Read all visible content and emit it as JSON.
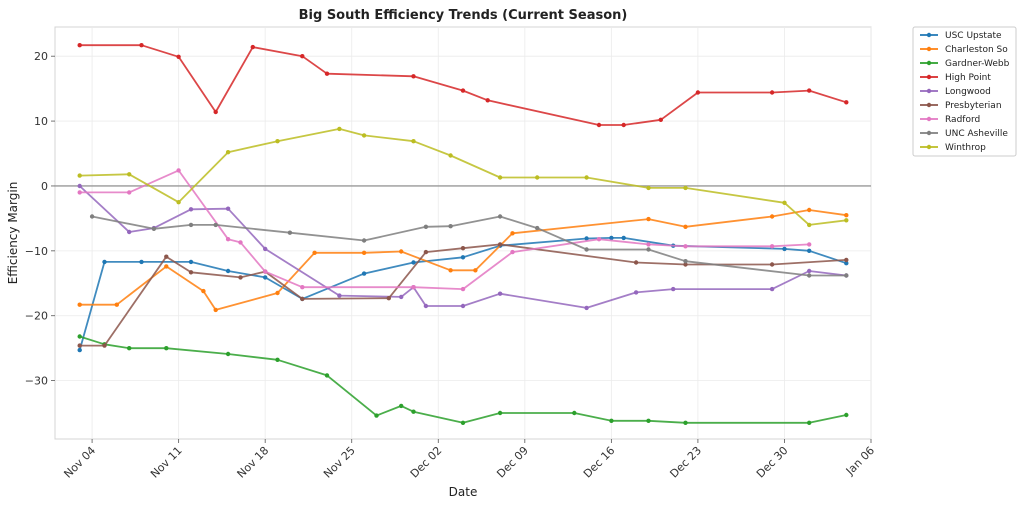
{
  "chart_data": {
    "type": "line",
    "title": "Big South Efficiency Trends (Current Season)",
    "xlabel": "Date",
    "ylabel": "Efficiency Margin",
    "x_ticks": [
      "Nov 04",
      "Nov 11",
      "Nov 18",
      "Nov 25",
      "Dec 02",
      "Dec 09",
      "Dec 16",
      "Dec 23",
      "Dec 30",
      "Jan 06"
    ],
    "y_ticks": [
      -30,
      -20,
      -10,
      0,
      10,
      20
    ],
    "ylim": [
      -39,
      24.5
    ],
    "xlim": [
      "2023-11-01",
      "2024-01-06"
    ],
    "reference_line": 0,
    "grid": true,
    "legend_position": "outside-top-right",
    "series": [
      {
        "name": "USC Upstate",
        "color": "#1f77b4",
        "points": [
          [
            "2023-11-03",
            -25.3
          ],
          [
            "2023-11-05",
            -11.7
          ],
          [
            "2023-11-08",
            -11.7
          ],
          [
            "2023-11-12",
            -11.7
          ],
          [
            "2023-11-15",
            -13.1
          ],
          [
            "2023-11-18",
            -14.1
          ],
          [
            "2023-11-21",
            -17.4
          ],
          [
            "2023-11-26",
            -13.5
          ],
          [
            "2023-11-30",
            -11.8
          ],
          [
            "2023-12-04",
            -11
          ],
          [
            "2023-12-07",
            -9.2
          ],
          [
            "2023-12-14",
            -8.1
          ],
          [
            "2023-12-16",
            -8
          ],
          [
            "2023-12-17",
            -8
          ],
          [
            "2023-12-21",
            -9.2
          ],
          [
            "2023-12-30",
            -9.7
          ],
          [
            "2024-01-01",
            -10
          ],
          [
            "2024-01-04",
            -11.9
          ]
        ]
      },
      {
        "name": "Charleston So",
        "color": "#ff7f0e",
        "points": [
          [
            "2023-11-03",
            -18.3
          ],
          [
            "2023-11-06",
            -18.3
          ],
          [
            "2023-11-10",
            -12.4
          ],
          [
            "2023-11-13",
            -16.2
          ],
          [
            "2023-11-14",
            -19.1
          ],
          [
            "2023-11-19",
            -16.5
          ],
          [
            "2023-11-22",
            -10.3
          ],
          [
            "2023-11-26",
            -10.3
          ],
          [
            "2023-11-29",
            -10.1
          ],
          [
            "2023-12-03",
            -13
          ],
          [
            "2023-12-05",
            -13
          ],
          [
            "2023-12-08",
            -7.3
          ],
          [
            "2023-12-19",
            -5.1
          ],
          [
            "2023-12-22",
            -6.3
          ],
          [
            "2023-12-29",
            -4.7
          ],
          [
            "2024-01-01",
            -3.7
          ],
          [
            "2024-01-04",
            -4.5
          ]
        ]
      },
      {
        "name": "Gardner-Webb",
        "color": "#2ca02c",
        "points": [
          [
            "2023-11-03",
            -23.2
          ],
          [
            "2023-11-05",
            -24.4
          ],
          [
            "2023-11-07",
            -25
          ],
          [
            "2023-11-10",
            -25
          ],
          [
            "2023-11-15",
            -25.9
          ],
          [
            "2023-11-19",
            -26.8
          ],
          [
            "2023-11-23",
            -29.2
          ],
          [
            "2023-11-27",
            -35.4
          ],
          [
            "2023-11-29",
            -33.9
          ],
          [
            "2023-11-30",
            -34.8
          ],
          [
            "2023-12-04",
            -36.5
          ],
          [
            "2023-12-07",
            -35
          ],
          [
            "2023-12-13",
            -35
          ],
          [
            "2023-12-16",
            -36.2
          ],
          [
            "2023-12-19",
            -36.2
          ],
          [
            "2023-12-22",
            -36.5
          ],
          [
            "2024-01-01",
            -36.5
          ],
          [
            "2024-01-04",
            -35.3
          ]
        ]
      },
      {
        "name": "High Point",
        "color": "#d62728",
        "points": [
          [
            "2023-11-03",
            21.7
          ],
          [
            "2023-11-08",
            21.7
          ],
          [
            "2023-11-11",
            19.9
          ],
          [
            "2023-11-14",
            11.4
          ],
          [
            "2023-11-17",
            21.4
          ],
          [
            "2023-11-21",
            20
          ],
          [
            "2023-11-23",
            17.3
          ],
          [
            "2023-11-30",
            16.9
          ],
          [
            "2023-12-04",
            14.7
          ],
          [
            "2023-12-06",
            13.2
          ],
          [
            "2023-12-15",
            9.4
          ],
          [
            "2023-12-17",
            9.4
          ],
          [
            "2023-12-20",
            10.2
          ],
          [
            "2023-12-23",
            14.4
          ],
          [
            "2023-12-29",
            14.4
          ],
          [
            "2024-01-01",
            14.7
          ],
          [
            "2024-01-04",
            12.9
          ]
        ]
      },
      {
        "name": "Longwood",
        "color": "#9467bd",
        "points": [
          [
            "2023-11-03",
            0
          ],
          [
            "2023-11-07",
            -7.1
          ],
          [
            "2023-11-09",
            -6.5
          ],
          [
            "2023-11-12",
            -3.6
          ],
          [
            "2023-11-15",
            -3.5
          ],
          [
            "2023-11-18",
            -9.7
          ],
          [
            "2023-11-24",
            -16.9
          ],
          [
            "2023-11-29",
            -17.1
          ],
          [
            "2023-11-30",
            -15.6
          ],
          [
            "2023-12-01",
            -18.5
          ],
          [
            "2023-12-04",
            -18.5
          ],
          [
            "2023-12-07",
            -16.6
          ],
          [
            "2023-12-14",
            -18.8
          ],
          [
            "2023-12-18",
            -16.4
          ],
          [
            "2023-12-21",
            -15.9
          ],
          [
            "2023-12-29",
            -15.9
          ],
          [
            "2024-01-01",
            -13.1
          ],
          [
            "2024-01-04",
            -13.8
          ]
        ]
      },
      {
        "name": "Presbyterian",
        "color": "#8c564b",
        "points": [
          [
            "2023-11-03",
            -24.6
          ],
          [
            "2023-11-05",
            -24.6
          ],
          [
            "2023-11-10",
            -10.9
          ],
          [
            "2023-11-12",
            -13.3
          ],
          [
            "2023-11-16",
            -14.1
          ],
          [
            "2023-11-18",
            -13.2
          ],
          [
            "2023-11-21",
            -17.4
          ],
          [
            "2023-11-28",
            -17.3
          ],
          [
            "2023-12-01",
            -10.2
          ],
          [
            "2023-12-04",
            -9.6
          ],
          [
            "2023-12-07",
            -9
          ],
          [
            "2023-12-18",
            -11.8
          ],
          [
            "2023-12-22",
            -12.1
          ],
          [
            "2023-12-29",
            -12.1
          ],
          [
            "2024-01-04",
            -11.4
          ]
        ]
      },
      {
        "name": "Radford",
        "color": "#e377c2",
        "points": [
          [
            "2023-11-03",
            -1
          ],
          [
            "2023-11-07",
            -1
          ],
          [
            "2023-11-11",
            2.4
          ],
          [
            "2023-11-15",
            -8.2
          ],
          [
            "2023-11-16",
            -8.7
          ],
          [
            "2023-11-18",
            -13.2
          ],
          [
            "2023-11-21",
            -15.6
          ],
          [
            "2023-11-30",
            -15.6
          ],
          [
            "2023-12-04",
            -15.9
          ],
          [
            "2023-12-08",
            -10.2
          ],
          [
            "2023-12-15",
            -8.2
          ],
          [
            "2023-12-19",
            -9
          ],
          [
            "2023-12-22",
            -9.3
          ],
          [
            "2023-12-29",
            -9.3
          ],
          [
            "2024-01-01",
            -9
          ]
        ]
      },
      {
        "name": "UNC Asheville",
        "color": "#7f7f7f",
        "points": [
          [
            "2023-11-04",
            -4.7
          ],
          [
            "2023-11-09",
            -6.6
          ],
          [
            "2023-11-12",
            -6
          ],
          [
            "2023-11-14",
            -6
          ],
          [
            "2023-11-20",
            -7.2
          ],
          [
            "2023-11-26",
            -8.4
          ],
          [
            "2023-12-01",
            -6.3
          ],
          [
            "2023-12-03",
            -6.2
          ],
          [
            "2023-12-07",
            -4.7
          ],
          [
            "2023-12-10",
            -6.5
          ],
          [
            "2023-12-14",
            -9.8
          ],
          [
            "2023-12-19",
            -9.8
          ],
          [
            "2023-12-22",
            -11.6
          ],
          [
            "2024-01-01",
            -13.8
          ],
          [
            "2024-01-04",
            -13.8
          ]
        ]
      },
      {
        "name": "Winthrop",
        "color": "#bcbd22",
        "points": [
          [
            "2023-11-03",
            1.6
          ],
          [
            "2023-11-07",
            1.8
          ],
          [
            "2023-11-11",
            -2.5
          ],
          [
            "2023-11-15",
            5.2
          ],
          [
            "2023-11-19",
            6.9
          ],
          [
            "2023-11-24",
            8.8
          ],
          [
            "2023-11-26",
            7.8
          ],
          [
            "2023-11-30",
            6.9
          ],
          [
            "2023-12-03",
            4.7
          ],
          [
            "2023-12-07",
            1.3
          ],
          [
            "2023-12-10",
            1.3
          ],
          [
            "2023-12-14",
            1.3
          ],
          [
            "2023-12-19",
            -0.3
          ],
          [
            "2023-12-22",
            -0.3
          ],
          [
            "2023-12-30",
            -2.6
          ],
          [
            "2024-01-01",
            -6
          ],
          [
            "2024-01-04",
            -5.3
          ]
        ]
      }
    ]
  }
}
